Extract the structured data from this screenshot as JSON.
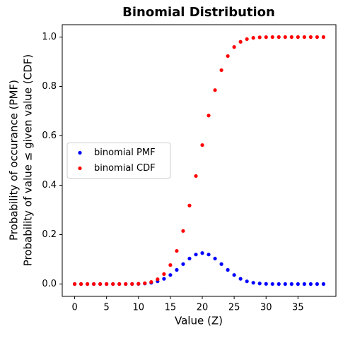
{
  "chart_data": {
    "type": "scatter",
    "title": "Binomial Distribution",
    "xlabel": "Value (Z)",
    "ylabel": [
      "Probability of occurance (PMF)",
      "Probability of value ≤ given value (CDF)"
    ],
    "x": [
      0,
      1,
      2,
      3,
      4,
      5,
      6,
      7,
      8,
      9,
      10,
      11,
      12,
      13,
      14,
      15,
      16,
      17,
      18,
      19,
      20,
      21,
      22,
      23,
      24,
      25,
      26,
      27,
      28,
      29,
      30,
      31,
      32,
      33,
      34,
      35,
      36,
      37,
      38,
      39
    ],
    "series": [
      {
        "name": "binomial PMF",
        "color": "#0000ff",
        "values": [
          0,
          0,
          0,
          0,
          0,
          0,
          0,
          2e-05,
          7e-05,
          0.00025,
          0.00077,
          0.0021,
          0.00508,
          0.01094,
          0.02111,
          0.03658,
          0.05716,
          0.0807,
          0.10312,
          0.1194,
          0.12537,
          0.1194,
          0.10312,
          0.0807,
          0.05716,
          0.03658,
          0.02111,
          0.01094,
          0.00508,
          0.0021,
          0.00077,
          0.00025,
          7e-05,
          2e-05,
          0,
          0,
          0,
          0,
          0,
          0
        ]
      },
      {
        "name": "binomial CDF",
        "color": "#ff0000",
        "values": [
          0,
          0,
          0,
          0,
          0,
          0,
          0,
          2e-05,
          9e-05,
          0.00034,
          0.00111,
          0.00321,
          0.00829,
          0.01924,
          0.04035,
          0.07693,
          0.13409,
          0.21479,
          0.31791,
          0.43731,
          0.56268,
          0.68209,
          0.78521,
          0.86591,
          0.92307,
          0.95965,
          0.98076,
          0.99171,
          0.99679,
          0.99889,
          0.99966,
          0.99991,
          0.99998,
          1,
          1,
          1,
          1,
          1,
          1,
          1
        ]
      }
    ],
    "xlim": [
      -1.95,
      40.95
    ],
    "xticks": [
      0,
      5,
      10,
      15,
      20,
      25,
      30,
      35
    ],
    "ylim": [
      -0.05,
      1.05
    ],
    "yticks": [
      {
        "value": 0,
        "label": "0.0"
      },
      {
        "value": 0.2,
        "label": "0.2"
      },
      {
        "value": 0.4,
        "label": "0.4"
      },
      {
        "value": 0.6,
        "label": "0.6"
      },
      {
        "value": 0.8,
        "label": "0.8"
      },
      {
        "value": 1,
        "label": "1.0"
      }
    ],
    "legend": "center left"
  }
}
